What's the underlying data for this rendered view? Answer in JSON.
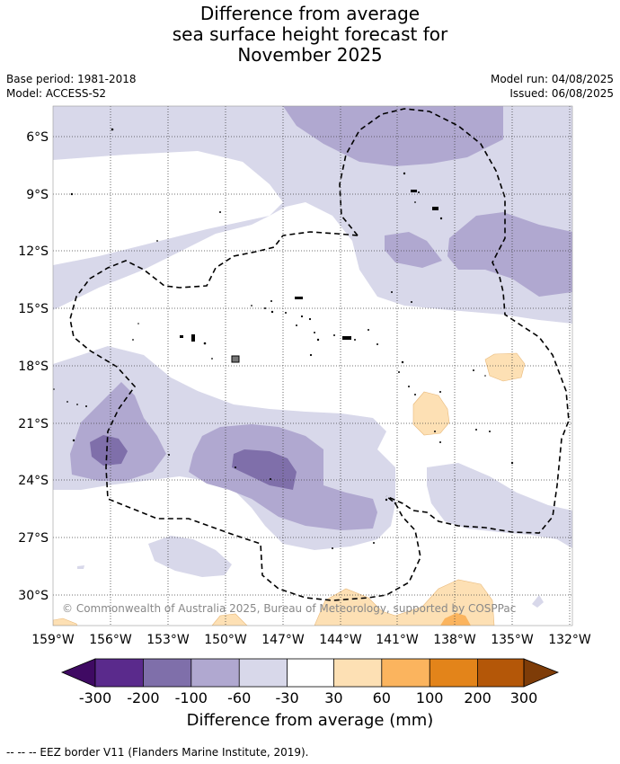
{
  "title": {
    "line1": "Difference from average",
    "line2": "sea surface height forecast for",
    "line3": "November 2025"
  },
  "meta": {
    "base_period": "Base period: 1981-2018",
    "model": "Model: ACCESS-S2",
    "model_run": "Model run: 04/08/2025",
    "issued": "Issued: 06/08/2025"
  },
  "map": {
    "lon_ticks": [
      "159°W",
      "156°W",
      "153°W",
      "150°W",
      "147°W",
      "144°W",
      "141°W",
      "138°W",
      "135°W",
      "132°W"
    ],
    "lat_ticks": [
      "6°S",
      "9°S",
      "12°S",
      "15°S",
      "18°S",
      "21°S",
      "24°S",
      "27°S",
      "30°S"
    ],
    "copyright": "© Commonwealth of Australia 2025, Bureau of Meteorology, supported by COSPPac"
  },
  "colorbar": {
    "ticks": [
      "-300",
      "-200",
      "-100",
      "-60",
      "-30",
      "30",
      "60",
      "100",
      "200",
      "300"
    ],
    "colors": [
      "#3f0a63",
      "#5a2a8c",
      "#7f6faa",
      "#b0a8d0",
      "#d8d8ea",
      "#ffffff",
      "#fde0b4",
      "#fbb45e",
      "#e3841a",
      "#b45708",
      "#7e3c08"
    ],
    "label": "Difference from average (mm)"
  },
  "footer": "--  --  -- EEZ border V11 (Flanders Marine Institute, 2019)."
}
